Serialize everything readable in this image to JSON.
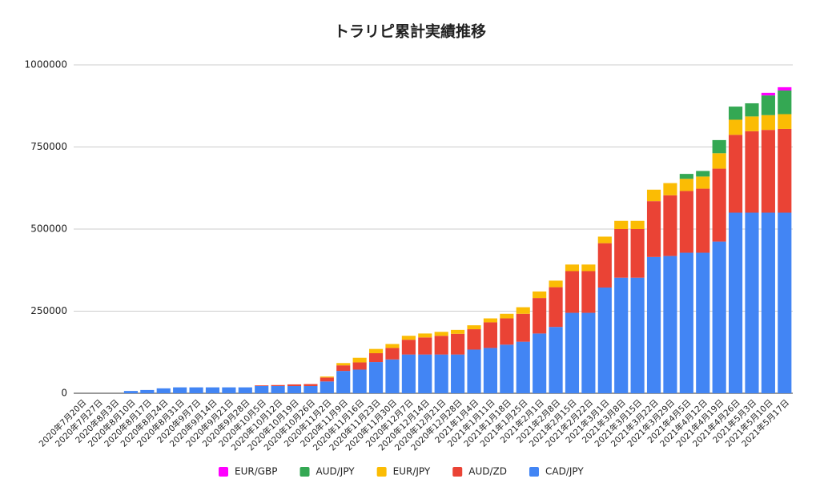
{
  "chart_data": {
    "type": "stacked-bar",
    "title": "トラリピ累計実績推移",
    "categories": [
      "2020年7月20日",
      "2020年7月27日",
      "2020年8月3日",
      "2020年8月10日",
      "2020年8月17日",
      "2020年8月24日",
      "2020年8月31日",
      "2020年9月7日",
      "2020年9月14日",
      "2020年9月21日",
      "2020年9月28日",
      "2020年10月5日",
      "2020年10月12日",
      "2020年10月19日",
      "2020年10月26日",
      "2020年11月2日",
      "2020年11月9日",
      "2020年11月16日",
      "2020年11月23日",
      "2020年11月30日",
      "2020年12月7日",
      "2020年12月14日",
      "2020年12月21日",
      "2020年12月28日",
      "2021年1月4日",
      "2021年1月11日",
      "2021年1月18日",
      "2021年1月25日",
      "2021年2月1日",
      "2021年2月8日",
      "2021年2月15日",
      "2021年2月22日",
      "2021年3月1日",
      "2021年3月8日",
      "2021年3月15日",
      "2021年3月22日",
      "2021年3月29日",
      "2021年4月5日",
      "2021年4月12日",
      "2021年4月19日",
      "2021年4月26日",
      "2021年5月3日",
      "2021年5月10日",
      "2021年5月17日"
    ],
    "series": [
      {
        "name": "EUR/GBP",
        "color": "#ff00ff",
        "values": [
          0,
          0,
          0,
          0,
          0,
          0,
          0,
          0,
          0,
          0,
          0,
          0,
          0,
          0,
          0,
          0,
          0,
          0,
          0,
          0,
          0,
          0,
          0,
          0,
          0,
          0,
          0,
          0,
          0,
          0,
          0,
          0,
          0,
          0,
          0,
          0,
          0,
          0,
          0,
          0,
          0,
          0,
          8000,
          10000
        ]
      },
      {
        "name": "AUD/JPY",
        "color": "#34a853",
        "values": [
          0,
          0,
          0,
          0,
          0,
          0,
          0,
          0,
          0,
          0,
          0,
          0,
          0,
          0,
          0,
          0,
          0,
          0,
          0,
          0,
          0,
          0,
          0,
          0,
          0,
          0,
          0,
          0,
          0,
          0,
          0,
          0,
          0,
          0,
          0,
          0,
          0,
          15000,
          17000,
          40000,
          40000,
          40000,
          60000,
          72000
        ]
      },
      {
        "name": "EUR/JPY",
        "color": "#fbbc04",
        "values": [
          0,
          0,
          0,
          0,
          0,
          0,
          0,
          0,
          0,
          0,
          0,
          0,
          0,
          0,
          0,
          3000,
          7000,
          14000,
          13000,
          12000,
          12000,
          12000,
          12000,
          12000,
          12000,
          12000,
          14000,
          20000,
          20000,
          20000,
          20000,
          20000,
          20000,
          25000,
          25000,
          35000,
          37000,
          37000,
          37000,
          47000,
          46000,
          45000,
          45000,
          45000
        ]
      },
      {
        "name": "AUD/ZD",
        "color": "#ea4335",
        "values": [
          0,
          0,
          0,
          0,
          0,
          0,
          0,
          0,
          0,
          0,
          0,
          2000,
          3000,
          5000,
          6000,
          12000,
          17000,
          22000,
          27000,
          35000,
          45000,
          52000,
          57000,
          63000,
          62000,
          78000,
          80000,
          85000,
          108000,
          121000,
          127000,
          127000,
          135000,
          148000,
          148000,
          170000,
          185000,
          188000,
          195000,
          222000,
          237000,
          248000,
          252000,
          255000
        ]
      },
      {
        "name": "CAD/JPY",
        "color": "#4285f4",
        "values": [
          0,
          0,
          0,
          7000,
          10000,
          15000,
          18000,
          18000,
          18000,
          18000,
          18000,
          22000,
          22000,
          22000,
          22000,
          36000,
          68000,
          72000,
          95000,
          103000,
          118000,
          118000,
          118000,
          118000,
          133000,
          138000,
          148000,
          157000,
          182000,
          202000,
          245000,
          245000,
          322000,
          352000,
          352000,
          415000,
          418000,
          428000,
          428000,
          462000,
          550000,
          550000,
          550000,
          550000
        ]
      }
    ],
    "ylim": [
      0,
      1000000
    ],
    "yticks": [
      0,
      250000,
      500000,
      750000,
      1000000
    ],
    "grid": true,
    "legend": "bottom"
  }
}
